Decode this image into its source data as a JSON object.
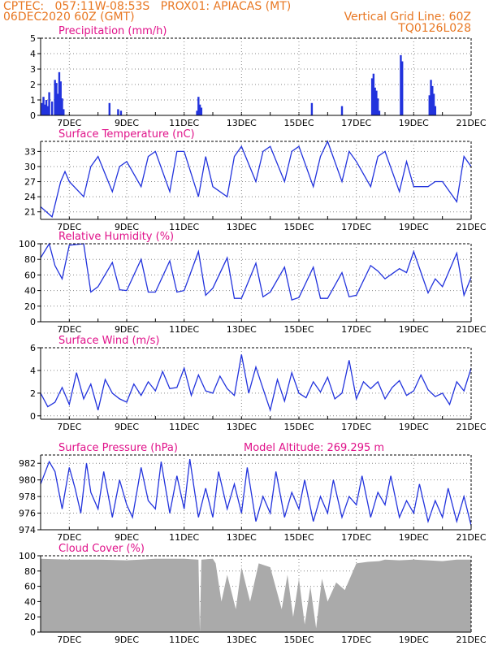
{
  "header": {
    "line1_left": "CPTEC:   057:11W-08:53S   PROX01: APIACAS (MT)",
    "line2_left": "06DEC2020 60Z (GMT)",
    "line2_right": "Vertical Grid Line: 60Z",
    "line3_right": "TQ0126L028"
  },
  "colors": {
    "header": "#e87722",
    "title": "#e0128a",
    "series": "#2233dd",
    "cloud": "#aaaaaa",
    "grid": "#888888"
  },
  "x_ticks": [
    "7DEC",
    "9DEC",
    "11DEC",
    "13DEC",
    "15DEC",
    "17DEC",
    "19DEC",
    "21DEC"
  ],
  "chart_data": [
    {
      "type": "bar",
      "title": "Precipitation (mm/h)",
      "x_range_days": [
        6.0,
        21.0
      ],
      "ylim": [
        0,
        5
      ],
      "yticks": [
        "0",
        "1",
        "2",
        "3",
        "4",
        "5"
      ],
      "x": [
        6.05,
        6.1,
        6.15,
        6.2,
        6.25,
        6.3,
        6.4,
        6.5,
        6.55,
        6.6,
        6.65,
        6.7,
        6.75,
        6.8,
        8.4,
        8.7,
        8.8,
        11.45,
        11.5,
        11.55,
        11.6,
        15.45,
        16.5,
        17.55,
        17.6,
        17.65,
        17.7,
        17.75,
        17.8,
        18.55,
        18.6,
        19.55,
        19.6,
        19.65,
        19.7,
        19.75
      ],
      "values": [
        0.8,
        1.2,
        0.7,
        1.0,
        0.6,
        1.5,
        0.9,
        2.3,
        2.1,
        1.4,
        2.8,
        2.2,
        1.1,
        0.4,
        0.8,
        0.4,
        0.3,
        0.3,
        1.2,
        0.7,
        0.5,
        0.8,
        0.6,
        2.4,
        2.7,
        1.8,
        1.6,
        1.1,
        0.3,
        3.9,
        3.5,
        1.3,
        2.3,
        1.9,
        1.4,
        0.6
      ]
    },
    {
      "type": "line",
      "title": "Surface Temperature (nC)",
      "x_range_days": [
        6.0,
        21.0
      ],
      "ylim": [
        19.5,
        35
      ],
      "yticks": [
        "21",
        "24",
        "27",
        "30",
        "33"
      ],
      "x": [
        6.0,
        6.4,
        6.7,
        6.85,
        7.0,
        7.5,
        7.75,
        8.0,
        8.5,
        8.75,
        9.0,
        9.5,
        9.75,
        10.0,
        10.5,
        10.75,
        11.0,
        11.5,
        11.75,
        12.0,
        12.5,
        12.75,
        13.0,
        13.5,
        13.75,
        14.0,
        14.5,
        14.75,
        15.0,
        15.5,
        15.75,
        16.0,
        16.5,
        16.75,
        17.0,
        17.5,
        17.75,
        18.0,
        18.5,
        18.75,
        19.0,
        19.5,
        19.75,
        20.0,
        20.5,
        20.75,
        21.0
      ],
      "values": [
        22,
        20,
        27,
        29,
        27,
        24,
        30,
        32,
        25,
        30,
        31,
        26,
        32,
        33,
        25,
        33,
        33,
        24,
        32,
        26,
        24,
        32,
        34,
        27,
        33,
        34,
        27,
        33,
        34,
        26,
        32,
        35,
        27,
        33,
        31,
        26,
        32,
        33,
        25,
        31,
        26,
        26,
        27,
        27,
        23,
        32,
        30
      ]
    },
    {
      "type": "line",
      "title": "Relative Humidity (%)",
      "x_range_days": [
        6.0,
        21.0
      ],
      "ylim": [
        0,
        100
      ],
      "yticks": [
        "0",
        "20",
        "40",
        "60",
        "80",
        "100"
      ],
      "x": [
        6.0,
        6.3,
        6.5,
        6.75,
        7.0,
        7.5,
        7.75,
        8.0,
        8.5,
        8.75,
        9.0,
        9.5,
        9.75,
        10.0,
        10.5,
        10.75,
        11.0,
        11.5,
        11.75,
        12.0,
        12.5,
        12.75,
        13.0,
        13.5,
        13.75,
        14.0,
        14.5,
        14.75,
        15.0,
        15.5,
        15.75,
        16.0,
        16.5,
        16.75,
        17.0,
        17.5,
        17.75,
        18.0,
        18.5,
        18.75,
        19.0,
        19.5,
        19.75,
        20.0,
        20.5,
        20.75,
        21.0
      ],
      "values": [
        82,
        100,
        72,
        55,
        98,
        100,
        38,
        45,
        76,
        41,
        40,
        80,
        38,
        38,
        78,
        38,
        40,
        90,
        34,
        43,
        82,
        30,
        30,
        75,
        32,
        38,
        70,
        28,
        31,
        70,
        30,
        30,
        63,
        32,
        34,
        72,
        65,
        55,
        68,
        63,
        90,
        37,
        55,
        45,
        88,
        34,
        57
      ]
    },
    {
      "type": "line",
      "title": "Surface Wind (m/s)",
      "x_range_days": [
        6.0,
        21.0
      ],
      "ylim": [
        -0.3,
        6
      ],
      "yticks": [
        "0",
        "2",
        "4",
        "6"
      ],
      "x": [
        6.0,
        6.25,
        6.5,
        6.75,
        7.0,
        7.25,
        7.5,
        7.75,
        8.0,
        8.25,
        8.5,
        8.75,
        9.0,
        9.25,
        9.5,
        9.75,
        10.0,
        10.25,
        10.5,
        10.75,
        11.0,
        11.25,
        11.5,
        11.75,
        12.0,
        12.25,
        12.5,
        12.75,
        13.0,
        13.25,
        13.5,
        13.75,
        14.0,
        14.25,
        14.5,
        14.75,
        15.0,
        15.25,
        15.5,
        15.75,
        16.0,
        16.25,
        16.5,
        16.75,
        17.0,
        17.25,
        17.5,
        17.75,
        18.0,
        18.25,
        18.5,
        18.75,
        19.0,
        19.25,
        19.5,
        19.75,
        20.0,
        20.25,
        20.5,
        20.75,
        21.0
      ],
      "values": [
        2.0,
        0.8,
        1.2,
        2.5,
        1.0,
        3.8,
        1.5,
        2.8,
        0.5,
        3.2,
        2.0,
        1.5,
        1.2,
        2.8,
        1.8,
        3.0,
        2.2,
        3.9,
        2.4,
        2.5,
        4.2,
        1.8,
        3.6,
        2.2,
        2.0,
        3.5,
        2.4,
        1.8,
        5.4,
        2.0,
        4.3,
        2.4,
        0.5,
        3.2,
        1.3,
        3.8,
        2.0,
        1.6,
        3.0,
        2.1,
        3.4,
        1.5,
        2.0,
        4.9,
        1.5,
        3.0,
        2.4,
        3.0,
        1.5,
        2.5,
        3.1,
        1.8,
        2.2,
        3.6,
        2.3,
        1.7,
        2.0,
        1.0,
        3.0,
        2.2,
        4.2
      ]
    },
    {
      "type": "line",
      "title": "Surface Pressure (hPa)",
      "subtitle": "Model Altitude: 269.295 m",
      "x_range_days": [
        6.0,
        21.0
      ],
      "ylim": [
        974,
        983
      ],
      "yticks": [
        "974",
        "976",
        "978",
        "980",
        "982"
      ],
      "x": [
        6.0,
        6.3,
        6.5,
        6.75,
        7.0,
        7.2,
        7.4,
        7.6,
        7.75,
        8.0,
        8.2,
        8.5,
        8.75,
        9.0,
        9.2,
        9.5,
        9.75,
        10.0,
        10.2,
        10.5,
        10.75,
        11.0,
        11.2,
        11.5,
        11.75,
        12.0,
        12.2,
        12.5,
        12.75,
        13.0,
        13.2,
        13.5,
        13.75,
        14.0,
        14.2,
        14.5,
        14.75,
        15.0,
        15.2,
        15.5,
        15.75,
        16.0,
        16.2,
        16.5,
        16.75,
        17.0,
        17.2,
        17.5,
        17.75,
        18.0,
        18.2,
        18.5,
        18.75,
        19.0,
        19.2,
        19.5,
        19.75,
        20.0,
        20.2,
        20.5,
        20.75,
        21.0
      ],
      "values": [
        979.5,
        982.2,
        981.0,
        976.5,
        981.5,
        979.0,
        976.0,
        982.0,
        978.5,
        976.5,
        981.0,
        975.5,
        980.0,
        977.0,
        975.5,
        981.5,
        977.5,
        976.5,
        982.2,
        976.0,
        980.5,
        976.5,
        982.5,
        975.5,
        979.0,
        975.5,
        981.0,
        976.5,
        979.5,
        976.0,
        981.5,
        975.0,
        978.0,
        976.0,
        981.0,
        975.5,
        978.5,
        976.5,
        980.0,
        975.0,
        978.0,
        976.0,
        980.0,
        975.5,
        978.0,
        977.0,
        980.5,
        975.5,
        978.5,
        977.0,
        980.5,
        975.5,
        977.5,
        976.0,
        979.5,
        975.0,
        977.5,
        975.5,
        979.0,
        975.0,
        978.0,
        974.5
      ]
    },
    {
      "type": "area",
      "title": "Cloud Cover (%)",
      "x_range_days": [
        6.0,
        21.0
      ],
      "ylim": [
        0,
        100
      ],
      "yticks": [
        "0",
        "20",
        "40",
        "60",
        "80",
        "100"
      ],
      "x": [
        6.0,
        7.0,
        8.0,
        9.0,
        10.0,
        11.0,
        11.5,
        11.55,
        11.6,
        12.0,
        12.1,
        12.3,
        12.5,
        12.8,
        13.0,
        13.3,
        13.6,
        14.0,
        14.4,
        14.6,
        14.8,
        15.0,
        15.2,
        15.4,
        15.6,
        15.8,
        16.0,
        16.3,
        16.6,
        17.0,
        17.4,
        17.8,
        18.0,
        18.5,
        19.0,
        19.5,
        20.0,
        20.5,
        21.0
      ],
      "values": [
        96,
        95,
        95,
        94,
        96,
        96,
        95,
        0,
        95,
        96,
        90,
        40,
        75,
        30,
        85,
        40,
        90,
        85,
        30,
        75,
        20,
        70,
        10,
        60,
        5,
        70,
        40,
        65,
        55,
        90,
        92,
        93,
        95,
        94,
        95,
        94,
        93,
        95,
        95
      ]
    }
  ]
}
